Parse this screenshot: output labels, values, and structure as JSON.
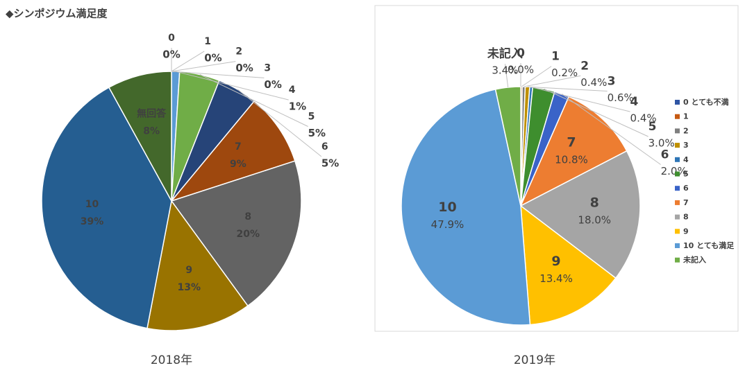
{
  "title": "◆シンポジウム満足度",
  "chart_data": [
    {
      "type": "pie",
      "caption": "2018年",
      "categories": [
        "0",
        "1",
        "2",
        "3",
        "4",
        "5",
        "6",
        "7",
        "8",
        "9",
        "10",
        "無回答"
      ],
      "values": [
        0,
        0,
        0,
        0,
        1,
        5,
        5,
        9,
        20,
        13,
        39,
        8
      ],
      "value_labels": [
        "0%",
        "0%",
        "0%",
        "0%",
        "1%",
        "5%",
        "5%",
        "9%",
        "20%",
        "13%",
        "39%",
        "8%"
      ],
      "colors": [
        "#4472c4",
        "#ed7d31",
        "#a5a5a5",
        "#ffc000",
        "#5b9bd5",
        "#70ad47",
        "#264478",
        "#9e480e",
        "#636363",
        "#997300",
        "#255e91",
        "#43682b"
      ]
    },
    {
      "type": "pie",
      "caption": "2019年",
      "legend": "right",
      "categories": [
        "0 とても不満",
        "1",
        "2",
        "3",
        "4",
        "5",
        "6",
        "7",
        "8",
        "9",
        "10 とても満足",
        "未記入"
      ],
      "labels": [
        "0",
        "1",
        "2",
        "3",
        "4",
        "5",
        "6",
        "7",
        "8",
        "9",
        "10",
        "未記入"
      ],
      "values": [
        0.0,
        0.2,
        0.4,
        0.6,
        0.4,
        3.0,
        2.0,
        10.8,
        18.0,
        13.4,
        47.9,
        3.4
      ],
      "value_labels": [
        "0.0%",
        "0.2%",
        "0.4%",
        "0.6%",
        "0.4%",
        "3.0%",
        "2.0%",
        "10.8%",
        "18.0%",
        "13.4%",
        "47.9%",
        "3.4%"
      ],
      "colors": [
        "#2f55a4",
        "#c65911",
        "#7f7f7f",
        "#bf9000",
        "#2e75b6",
        "#3e8e2e",
        "#3a63c8",
        "#ed7d31",
        "#a5a5a5",
        "#ffc000",
        "#5b9bd5",
        "#70ad47"
      ]
    }
  ]
}
